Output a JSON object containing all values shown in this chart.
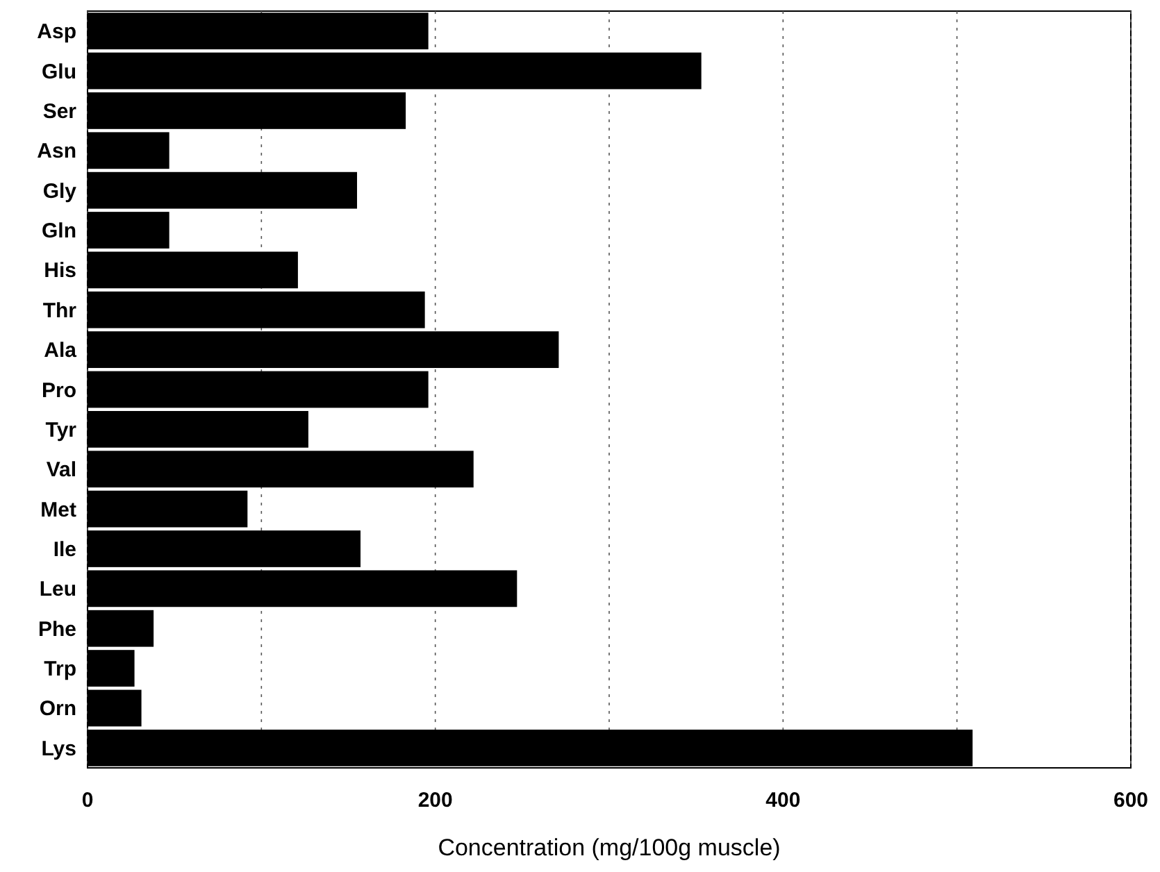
{
  "chart_data": {
    "type": "bar",
    "orientation": "horizontal",
    "xlabel": "Concentration (mg/100g muscle)",
    "categories": [
      "Asp",
      "Glu",
      "Ser",
      "Asn",
      "Gly",
      "Gln",
      "His",
      "Thr",
      "Ala",
      "Pro",
      "Tyr",
      "Val",
      "Met",
      "Ile",
      "Leu",
      "Phe",
      "Trp",
      "Orn",
      "Lys"
    ],
    "values": [
      196,
      353,
      183,
      47,
      155,
      47,
      121,
      194,
      271,
      196,
      127,
      222,
      92,
      157,
      247,
      38,
      27,
      31,
      509
    ],
    "color": "#000000",
    "xlim": [
      0,
      600
    ],
    "xticks": [
      0,
      {
        "value": 100,
        "label": null
      },
      200,
      {
        "value": 300,
        "label": null
      },
      400,
      {
        "value": 500,
        "label": null
      },
      600
    ],
    "grid": "x"
  }
}
